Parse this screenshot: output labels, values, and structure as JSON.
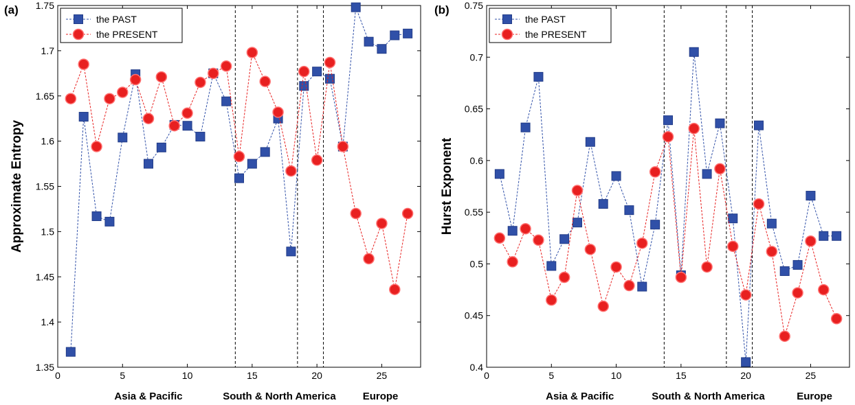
{
  "chart_data": [
    {
      "type": "line",
      "panel_label": "(a)",
      "ylabel": "Approximate Entropy",
      "xlim": [
        0,
        28
      ],
      "ylim": [
        1.35,
        1.75
      ],
      "xticks": [
        0,
        5,
        10,
        15,
        20,
        25
      ],
      "yticks": [
        1.35,
        1.4,
        1.45,
        1.5,
        1.55,
        1.6,
        1.65,
        1.7,
        1.75
      ],
      "ytick_decimals": 2,
      "vlines": [
        13.7,
        18.5,
        20.5
      ],
      "region_labels": [
        {
          "text": "Asia & Pacific",
          "x": 7
        },
        {
          "text": "South & North America",
          "x": 17.1
        },
        {
          "text": "Europe",
          "x": 24.9
        }
      ],
      "legend": "top-left",
      "x": [
        1,
        2,
        3,
        4,
        5,
        6,
        7,
        8,
        9,
        10,
        11,
        12,
        13,
        14,
        15,
        16,
        17,
        18,
        19,
        20,
        21,
        22,
        23,
        24,
        25,
        26,
        27
      ],
      "series": [
        {
          "name": "the PAST",
          "color": "#3050a8",
          "marker": "square",
          "values": [
            1.367,
            1.627,
            1.517,
            1.511,
            1.604,
            1.674,
            1.575,
            1.593,
            1.618,
            1.617,
            1.605,
            1.675,
            1.644,
            1.559,
            1.575,
            1.588,
            1.625,
            1.478,
            1.661,
            1.677,
            1.669,
            1.594,
            1.748,
            1.71,
            1.702,
            1.717,
            1.719
          ]
        },
        {
          "name": "the PRESENT",
          "color": "#e82020",
          "marker": "circle",
          "values": [
            1.647,
            1.685,
            1.594,
            1.647,
            1.654,
            1.668,
            1.625,
            1.671,
            1.617,
            1.631,
            1.665,
            1.675,
            1.683,
            1.583,
            1.698,
            1.666,
            1.632,
            1.567,
            1.677,
            1.579,
            1.687,
            1.594,
            1.52,
            1.47,
            1.509,
            1.436,
            1.52
          ]
        }
      ]
    },
    {
      "type": "line",
      "panel_label": "(b)",
      "ylabel": "Hurst Exponent",
      "xlim": [
        0,
        28
      ],
      "ylim": [
        0.4,
        0.75
      ],
      "xticks": [
        0,
        5,
        10,
        15,
        20,
        25
      ],
      "yticks": [
        0.4,
        0.45,
        0.5,
        0.55,
        0.6,
        0.65,
        0.7,
        0.75
      ],
      "ytick_decimals": 2,
      "vlines": [
        13.7,
        18.5,
        20.5
      ],
      "region_labels": [
        {
          "text": "Asia & Pacific",
          "x": 7.2
        },
        {
          "text": "South & North America",
          "x": 17.1
        },
        {
          "text": "Europe",
          "x": 25.3
        }
      ],
      "legend": "top-left",
      "x": [
        1,
        2,
        3,
        4,
        5,
        6,
        7,
        8,
        9,
        10,
        11,
        12,
        13,
        14,
        15,
        16,
        17,
        18,
        19,
        20,
        21,
        22,
        23,
        24,
        25,
        26,
        27
      ],
      "series": [
        {
          "name": "the PAST",
          "color": "#3050a8",
          "marker": "square",
          "values": [
            0.587,
            0.532,
            0.632,
            0.681,
            0.498,
            0.524,
            0.54,
            0.618,
            0.558,
            0.585,
            0.552,
            0.478,
            0.538,
            0.639,
            0.489,
            0.705,
            0.587,
            0.636,
            0.544,
            0.405,
            0.634,
            0.539,
            0.493,
            0.499,
            0.566,
            0.527,
            0.527
          ]
        },
        {
          "name": "the PRESENT",
          "color": "#e82020",
          "marker": "circle",
          "values": [
            0.525,
            0.502,
            0.534,
            0.523,
            0.465,
            0.487,
            0.571,
            0.514,
            0.459,
            0.497,
            0.479,
            0.52,
            0.589,
            0.623,
            0.487,
            0.631,
            0.497,
            0.592,
            0.517,
            0.47,
            0.558,
            0.512,
            0.43,
            0.472,
            0.522,
            0.475,
            0.447
          ]
        }
      ]
    }
  ]
}
